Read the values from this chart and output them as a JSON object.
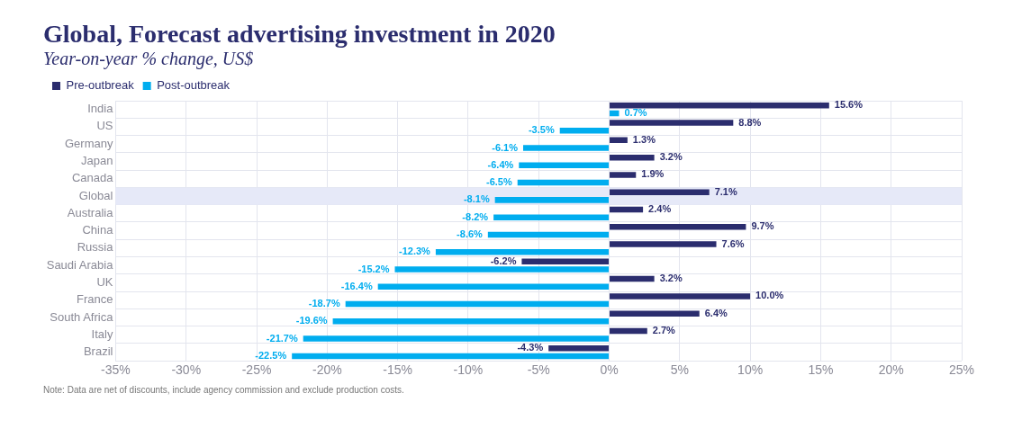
{
  "chart_data": {
    "type": "bar",
    "orientation": "horizontal",
    "title": "Global, Forecast advertising investment in 2020",
    "subtitle": "Year-on-year % change, US$",
    "categories": [
      "India",
      "US",
      "Germany",
      "Japan",
      "Canada",
      "Global",
      "Australia",
      "China",
      "Russia",
      "Saudi Arabia",
      "UK",
      "France",
      "South Africa",
      "Italy",
      "Brazil"
    ],
    "series": [
      {
        "name": "Pre-outbreak",
        "color": "#2b2d6e",
        "values": [
          15.6,
          8.8,
          1.3,
          3.2,
          1.9,
          7.1,
          2.4,
          9.7,
          7.6,
          -6.2,
          3.2,
          10.0,
          6.4,
          2.7,
          -4.3
        ],
        "value_labels": [
          "15.6%",
          "8.8%",
          "1.3%",
          "3.2%",
          "1.9%",
          "7.1%",
          "2.4%",
          "9.7%",
          "7.6%",
          "-6.2%",
          "3.2%",
          "10.0%",
          "6.4%",
          "2.7%",
          "-4.3%"
        ]
      },
      {
        "name": "Post-outbreak",
        "color": "#00adef",
        "values": [
          0.7,
          -3.5,
          -6.1,
          -6.4,
          -6.5,
          -8.1,
          -8.2,
          -8.6,
          -12.3,
          -15.2,
          -16.4,
          -18.7,
          -19.6,
          -21.7,
          -22.5
        ],
        "value_labels": [
          "0.7%",
          "-3.5%",
          "-6.1%",
          "-6.4%",
          "-6.5%",
          "-8.1%",
          "-8.2%",
          "-8.6%",
          "-12.3%",
          "-15.2%",
          "-16.4%",
          "-18.7%",
          "-19.6%",
          "-21.7%",
          "-22.5%"
        ]
      }
    ],
    "xlim": [
      -35,
      25
    ],
    "xticks": [
      {
        "value": -35,
        "label": "-35%"
      },
      {
        "value": -30,
        "label": "-30%"
      },
      {
        "value": -25,
        "label": "-25%"
      },
      {
        "value": -20,
        "label": "-20%"
      },
      {
        "value": -15,
        "label": "-15%"
      },
      {
        "value": -10,
        "label": "-10%"
      },
      {
        "value": -5,
        "label": "-5%"
      },
      {
        "value": 0,
        "label": "0%"
      },
      {
        "value": 5,
        "label": "5%"
      },
      {
        "value": 10,
        "label": "10%"
      },
      {
        "value": 15,
        "label": "15%"
      },
      {
        "value": 20,
        "label": "20%"
      },
      {
        "value": 25,
        "label": "25%"
      }
    ],
    "bands": [
      {
        "axis": "y",
        "from": "Global",
        "to": "Global",
        "color": "#e6e9f8"
      }
    ],
    "grid": true,
    "legend": "top left",
    "annotations": [
      "Note: Data are net of discounts, include agency commission and exclude production costs."
    ]
  }
}
